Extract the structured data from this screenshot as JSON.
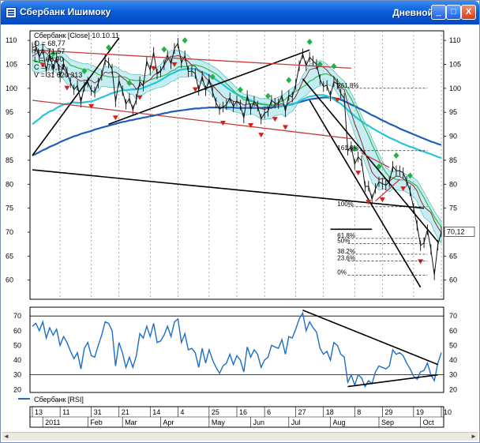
{
  "window": {
    "title": "Сбербанк Ишимоку",
    "period": "Дневной",
    "min_glyph": "_",
    "max_glyph": "□",
    "close_glyph": "X"
  },
  "info_box": {
    "line1": "Сбербанк [Close] 10.10.11",
    "line2": "O = 68,77",
    "line3": "H = 71,57",
    "line4": "L = 68,90",
    "line5": "C = 70,12",
    "line6": "V = 31 620 313"
  },
  "colors": {
    "close": "#111111",
    "tenkan": "#8b1a1a",
    "kijun": "#35b84a",
    "ma_fast": "#28c5d6",
    "ma_slow": "#1f5fb8",
    "chikou": "#5a0f0f",
    "cloud": "#7fd6e6",
    "cloud_edge": "#3fb3a8",
    "rsi": "#1b6ec8",
    "up_marker": "#22b24a",
    "down_marker": "#d3201b",
    "channel_red": "#c43a3a"
  },
  "chart_data": [
    {
      "type": "line",
      "name": "price",
      "ylim": [
        56,
        112
      ],
      "yticks": [
        60,
        65,
        70,
        75,
        80,
        85,
        90,
        95,
        100,
        105,
        110
      ],
      "last_value_label": "70,12",
      "fib_labels": [
        "261.8%",
        "161.8%",
        "100%",
        "61.8%",
        "50%",
        "38.2%",
        "23.6%",
        "0%"
      ],
      "fib_levels": [
        100,
        87,
        75.3,
        68.7,
        67.6,
        65.4,
        64.0,
        61.0
      ],
      "series": [
        {
          "name": "Сбербанк",
          "values": [
            108.5,
            108.8,
            106.5,
            108.2,
            103.5,
            107.2,
            104,
            106.5,
            102.4,
            105.2,
            103.4,
            101.2,
            99.7,
            100.6,
            97.1,
            100.4,
            101.3,
            99.6,
            99.2,
            101.1,
            102.7,
            105.9,
            105.3,
            104,
            97.2,
            101.6,
            99.5,
            96.7,
            97.9,
            95.5,
            97.7,
            101.4,
            100.5,
            105.7,
            103.8,
            107.5,
            103,
            103.5,
            104.9,
            106.9,
            105.1,
            108.3,
            109.4,
            105.3,
            106.8,
            103.5,
            103.6,
            103.1,
            99.6,
            102.5,
            99.5,
            101.9,
            99.2,
            97,
            95.6,
            96.1,
            96.6,
            98,
            96.2,
            97.4,
            96.5,
            93.8,
            98.5,
            95.6,
            97.3,
            96.3,
            93.6,
            94.8,
            95.2,
            97.5,
            96.9,
            96.8,
            98.5,
            95.2,
            98.5,
            98.2,
            100.8,
            104.7,
            107.2,
            104.7,
            106.5,
            105.7,
            105,
            101.8,
            100.4,
            100.6,
            98.4,
            101.4,
            100.9,
            98.9,
            97.9,
            87.1,
            87.8,
            84.2,
            85.7,
            84.9,
            79.5,
            79.6,
            76.9,
            79.1,
            80.5,
            80.1,
            79.8,
            80.5,
            83.7,
            82.8,
            82.8,
            82.4,
            80.6,
            78.6,
            75,
            71.4,
            67.2,
            67.8,
            70.5,
            66.4,
            61.1,
            67.3,
            70.1
          ]
        },
        {
          "name": "Tenkan",
          "values": [
            106.7,
            107.1,
            107.8,
            108.1,
            107.3,
            106.6,
            106,
            105.4,
            104.6,
            104.1,
            103.1,
            102.9,
            102.5,
            101.9,
            101.5,
            101.7,
            101.7,
            101.6,
            101.1,
            101.6,
            102.6,
            103.4,
            103.2,
            103.4,
            103.4,
            102.9,
            102.2,
            101.7,
            100.9,
            100.9,
            99.8,
            100.6,
            100.9,
            101.4,
            101.8,
            102.7,
            103.2,
            103.7,
            104.7,
            106,
            106.7,
            106.7,
            106.8,
            106.6,
            106.1,
            105.6,
            104.8,
            104.6,
            103.6,
            103.2,
            102.2,
            101.5,
            100.6,
            99.8,
            99.1,
            98.3,
            97.8,
            97.8,
            97.3,
            97.2,
            97,
            96.5,
            96.7,
            96.8,
            96.7,
            96.2,
            95.8,
            95.6,
            95.9,
            95.8,
            96.5,
            96.6,
            96.8,
            96.2,
            97,
            97.4,
            98.3,
            99.8,
            101.5,
            102.5,
            103.9,
            104.1,
            104.3,
            104.6,
            104.4,
            103.8,
            102.9,
            102.3,
            101.1,
            100.2,
            99.7,
            96.8,
            94.9,
            92.6,
            90.8,
            88.8,
            86.5,
            84.6,
            82.5,
            81.6,
            81,
            81.2,
            81.1,
            80.6,
            81.2,
            81.7,
            81.6,
            81.2,
            80.5,
            80.2,
            79.6,
            78.6,
            76.7,
            75.3,
            74.7,
            74.1,
            72.3,
            71,
            69.9
          ]
        },
        {
          "name": "Kijun",
          "values": [
            105.9,
            105.5,
            105.4,
            105.6,
            105.9,
            106,
            106.3,
            106.4,
            106.7,
            106.2,
            105.6,
            104.8,
            104.6,
            104.3,
            104.1,
            103.9,
            104,
            103.6,
            103.4,
            102.9,
            102.7,
            102.6,
            102.4,
            102.4,
            102.3,
            102.5,
            102.4,
            102.3,
            101.8,
            101.7,
            101.6,
            101.7,
            101.5,
            101.5,
            101.8,
            102,
            102.3,
            102.4,
            102.7,
            103,
            103.6,
            103.8,
            104.4,
            104.6,
            104.5,
            104.6,
            104.9,
            104.9,
            104.7,
            104.5,
            104.2,
            103.8,
            103.4,
            103,
            102.4,
            101.7,
            101,
            100.3,
            99.6,
            98.8,
            98.3,
            97.6,
            97.5,
            97.3,
            97.1,
            96.9,
            96.6,
            96.7,
            96.6,
            96.4,
            96.7,
            97,
            97.3,
            97.7,
            98.4,
            98.9,
            99.4,
            99.8,
            100.3,
            100.7,
            101.5,
            101.8,
            102.4,
            102.7,
            103,
            103,
            102.7,
            102.4,
            101.6,
            100.9,
            100.3,
            99,
            97.8,
            96.3,
            94.8,
            93.1,
            91.6,
            90.1,
            88.3,
            86.8,
            85.2,
            83.6,
            82.4,
            81.6,
            81.3,
            81,
            80.9,
            80.9,
            80.8,
            80.6,
            80.1,
            79.6,
            78.4,
            77.2,
            75.8,
            74.6,
            73.2,
            72.1,
            71.1
          ]
        },
        {
          "name": "MA fast",
          "values": [
            92.5,
            93.1,
            93.6,
            94.3,
            94.7,
            95.2,
            95.4,
            95.9,
            96.3,
            96.6,
            96.8,
            96.9,
            97.1,
            97,
            97,
            97.1,
            97.2,
            97.3,
            97.5,
            97.8,
            98.1,
            98.4,
            98.7,
            99,
            99.2,
            99.4,
            99.6,
            99.6,
            99.7,
            99.8,
            99.8,
            99.9,
            100.1,
            100.4,
            100.7,
            101,
            101.3,
            101.7,
            102.1,
            102.6,
            103,
            103.3,
            103.7,
            103.9,
            104,
            104.1,
            104.1,
            104,
            103.8,
            103.4,
            103.1,
            102.7,
            102.3,
            101.8,
            101.3,
            100.8,
            100.2,
            99.7,
            99.2,
            98.8,
            98.4,
            98.1,
            97.8,
            97.5,
            97.2,
            96.9,
            96.8,
            96.6,
            96.5,
            96.4,
            96.3,
            96.3,
            96.4,
            96.4,
            96.5,
            96.6,
            96.9,
            97.3,
            97.7,
            98,
            98.3,
            98.4,
            98.6,
            98.6,
            98.6,
            98.4,
            98.1,
            97.7,
            97.2,
            96.8,
            96.2,
            95.5,
            94.8,
            94.2,
            93.6,
            93.1,
            92.6,
            92.2,
            91.7,
            91.3,
            90.9,
            90.5,
            90.1,
            89.7,
            89.4,
            89.1,
            88.7,
            88.4,
            88.1,
            87.8,
            87.6,
            87.3,
            87,
            86.8,
            86.5,
            86.3,
            86,
            85.7,
            85.5
          ]
        },
        {
          "name": "MA slow",
          "values": [
            86,
            86.3,
            86.7,
            87.1,
            87.4,
            87.8,
            88.1,
            88.4,
            88.8,
            89.1,
            89.4,
            89.7,
            90,
            90.2,
            90.5,
            90.7,
            90.9,
            91.1,
            91.4,
            91.6,
            91.8,
            92,
            92.2,
            92.4,
            92.6,
            92.8,
            93,
            93.1,
            93.3,
            93.4,
            93.6,
            93.7,
            93.9,
            94,
            94.2,
            94.3,
            94.5,
            94.6,
            94.8,
            94.9,
            95.1,
            95.2,
            95.3,
            95.4,
            95.5,
            95.6,
            95.7,
            95.8,
            95.8,
            95.9,
            95.9,
            96,
            96,
            96,
            96,
            96,
            96,
            96,
            96,
            95.9,
            95.9,
            95.9,
            95.9,
            95.9,
            95.9,
            95.9,
            95.9,
            96,
            96,
            96,
            96.1,
            96.2,
            96.3,
            96.4,
            96.6,
            96.7,
            96.9,
            97.1,
            97.3,
            97.5,
            97.7,
            97.8,
            97.9,
            98,
            98.1,
            98.1,
            98.1,
            98,
            97.8,
            97.6,
            97.3,
            97,
            96.6,
            96.3,
            95.9,
            95.6,
            95.2,
            94.8,
            94.4,
            94.1,
            93.7,
            93.3,
            93,
            92.6,
            92.3,
            92,
            91.6,
            91.3,
            91,
            90.7,
            90.4,
            90.1,
            89.8,
            89.5,
            89.2,
            88.9,
            88.7,
            88.4,
            88.2
          ]
        }
      ],
      "trendlines_black": [
        {
          "from": [
            0,
            86
          ],
          "to": [
            25,
            110.5
          ]
        },
        {
          "from": [
            22,
            92.5
          ],
          "to": [
            80,
            108
          ]
        },
        {
          "from": [
            0,
            83
          ],
          "to": [
            113,
            75
          ]
        },
        {
          "from": [
            78,
            102
          ],
          "to": [
            117,
            68
          ]
        },
        {
          "from": [
            80,
            97.5
          ],
          "to": [
            112,
            58.5
          ]
        },
        {
          "from": [
            86,
            70.6
          ],
          "to": [
            98,
            70.6
          ]
        }
      ],
      "trendlines_red": [
        {
          "from": [
            0,
            108
          ],
          "to": [
            92,
            104.2
          ]
        },
        {
          "from": [
            0,
            97.5
          ],
          "to": [
            92,
            89.5
          ]
        },
        {
          "from": [
            95,
            86.5
          ],
          "to": [
            103,
            83.5
          ]
        },
        {
          "from": [
            99,
            76.5
          ],
          "to": [
            106,
            81
          ]
        }
      ],
      "markers_up_idx": [
        6,
        15,
        22,
        28,
        38,
        44,
        52,
        60,
        68,
        74,
        80,
        83,
        87,
        93,
        100,
        105,
        109
      ],
      "markers_down_idx": [
        3,
        10,
        17,
        24,
        31,
        35,
        41,
        47,
        55,
        63,
        66,
        70,
        73,
        88,
        94,
        97,
        101,
        107,
        112
      ]
    },
    {
      "type": "line",
      "name": "RSI",
      "ylim": [
        18,
        76
      ],
      "yticks": [
        20,
        30,
        40,
        50,
        60,
        70
      ],
      "hlines": [
        70,
        30
      ],
      "legend": "Сбербанк [RSI]",
      "series": [
        {
          "name": "Сбербанк [RSI]",
          "values": [
            63,
            65,
            60,
            66,
            55,
            62,
            57,
            61,
            50,
            56,
            52,
            46,
            41,
            45,
            34,
            48,
            52,
            43,
            42,
            50,
            57,
            66,
            65,
            60,
            36,
            52,
            45,
            35,
            42,
            35,
            43,
            58,
            55,
            63,
            56,
            65,
            52,
            53,
            57,
            63,
            56,
            66,
            68,
            52,
            58,
            47,
            48,
            45,
            35,
            48,
            38,
            47,
            40,
            35,
            31,
            36,
            38,
            44,
            37,
            43,
            40,
            32,
            49,
            42,
            47,
            44,
            35,
            40,
            42,
            50,
            49,
            48,
            54,
            44,
            56,
            55,
            61,
            68,
            72,
            60,
            66,
            62,
            59,
            48,
            44,
            46,
            40,
            52,
            50,
            44,
            42,
            25,
            30,
            23,
            30,
            28,
            22,
            26,
            24,
            32,
            36,
            35,
            34,
            36,
            47,
            44,
            45,
            43,
            38,
            34,
            29,
            27,
            32,
            33,
            38,
            30,
            26,
            38,
            45
          ]
        }
      ],
      "trendlines": [
        {
          "from": [
            78,
            74
          ],
          "to": [
            117,
            37
          ]
        },
        {
          "from": [
            91,
            22
          ],
          "to": [
            117,
            30
          ]
        }
      ]
    }
  ],
  "x_axis": {
    "day_labels": [
      "13",
      "11",
      "31",
      "21",
      "14",
      "4",
      "25",
      "16",
      "6",
      "27",
      "18",
      "8",
      "29",
      "19",
      "10"
    ],
    "month_labels": [
      "2011",
      "Feb",
      "Mar",
      "Apr",
      "May",
      "Jun",
      "Jul",
      "Aug",
      "Sep",
      "Oct"
    ]
  }
}
